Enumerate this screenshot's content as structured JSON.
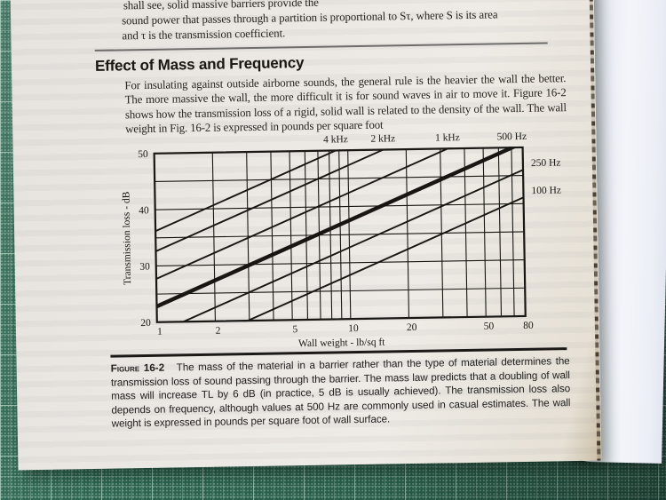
{
  "page_text": {
    "top_fragment": {
      "line1": "shall see, solid massive barriers provide the",
      "line2": "sound power that passes through a partition is proportional to Sτ, where S is its area",
      "line3": "and τ is the transmission coefficient."
    },
    "section_heading": "Effect of Mass and Frequency",
    "body_paragraph": "For insulating against outside airborne sounds, the general rule is the heavier the wall the better. The more massive the wall, the more difficult it is for sound waves in air to move it. Figure 16-2 shows how the transmission loss of a rigid, solid wall is related to the density of the wall. The wall weight in Fig. 16-2 is expressed in pounds per square foot",
    "figure_caption": {
      "label": "Figure 16-2",
      "text": "The mass of the material in a barrier rather than the type of material determines the transmission loss of sound passing through the barrier. The mass law predicts that a doubling of wall mass will increase TL by 6 dB (in practice, 5 dB is usually achieved). The transmission loss also depends on frequency, although values at 500 Hz are commonly used in casual estimates. The wall weight is expressed in pounds per square foot of wall surface."
    }
  },
  "chart_data": {
    "type": "line",
    "title": "",
    "xlabel": "Wall weight - lb/sq ft",
    "ylabel": "Transmission loss - dB",
    "x_scale": "log",
    "xlim": [
      1,
      80
    ],
    "ylim": [
      20,
      50
    ],
    "x_tick_labels": [
      "1",
      "2",
      "5",
      "10",
      "20",
      "50",
      "80"
    ],
    "x_tick_values": [
      1,
      2,
      5,
      10,
      20,
      50,
      80
    ],
    "y_tick_labels": [
      "20",
      "30",
      "40",
      "50"
    ],
    "y_tick_values": [
      20,
      30,
      40,
      50
    ],
    "x_gridlines": [
      1,
      2,
      3,
      4,
      5,
      6,
      7,
      8,
      9,
      10,
      20,
      30,
      40,
      50,
      60,
      70,
      80
    ],
    "y_gridlines": [
      20,
      25,
      30,
      35,
      40,
      45,
      50
    ],
    "grid": true,
    "legend_position": "line-end labels along top and right edges",
    "series": [
      {
        "name": "4 kHz",
        "label_side": "top",
        "bold": false,
        "x": [
          1,
          80
        ],
        "y": [
          36.2,
          64.2
        ]
      },
      {
        "name": "2 kHz",
        "label_side": "top",
        "bold": false,
        "x": [
          1,
          80
        ],
        "y": [
          32.6,
          60.6
        ]
      },
      {
        "name": "1 kHz",
        "label_side": "top",
        "bold": false,
        "x": [
          1,
          80
        ],
        "y": [
          27.7,
          55.7
        ]
      },
      {
        "name": "500 Hz",
        "label_side": "top",
        "bold": true,
        "x": [
          1,
          80
        ],
        "y": [
          22.8,
          50.8
        ]
      },
      {
        "name": "250 Hz",
        "label_side": "right",
        "bold": false,
        "x": [
          1,
          80
        ],
        "y": [
          18.0,
          46.0
        ]
      },
      {
        "name": "100 Hz",
        "label_side": "right",
        "bold": false,
        "x": [
          1,
          80
        ],
        "y": [
          13.1,
          41.1
        ]
      }
    ]
  },
  "colors": {
    "mat_green": "#2d6551",
    "page_paper": "#eae7e2",
    "ink": "#26231f",
    "chart_ink": "#161511",
    "rule_gray": "#6f6e6c"
  }
}
